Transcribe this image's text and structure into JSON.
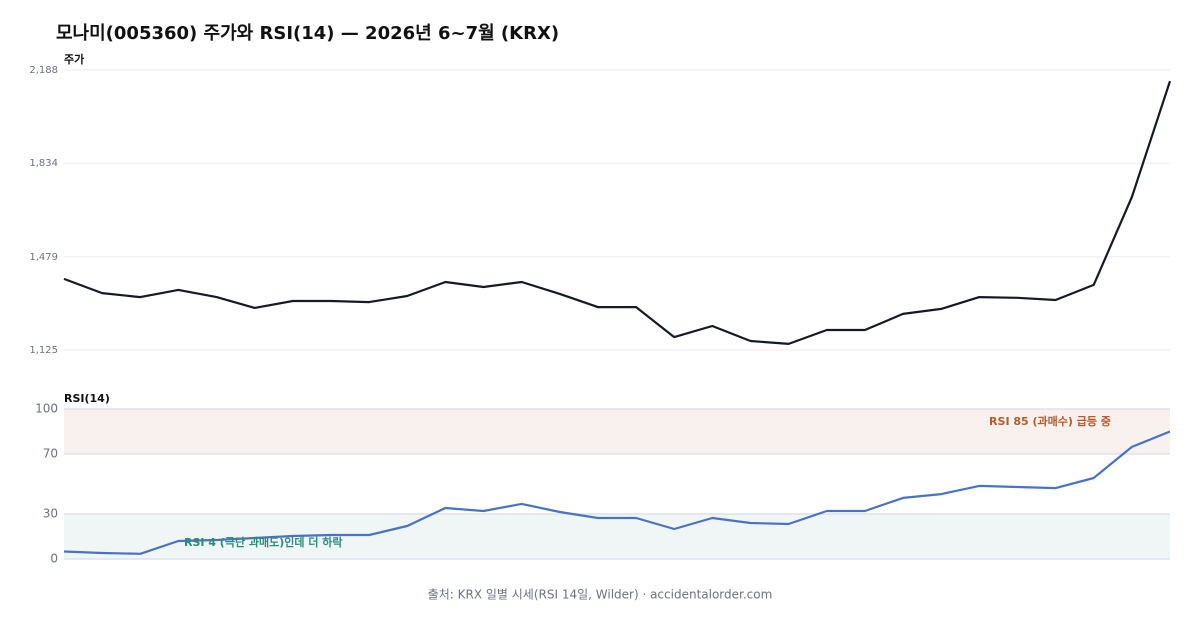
{
  "title": "모나미(005360) 주가와 RSI(14) — 2026년 6~7월 (KRX)",
  "source": "출처: KRX 일별 시세(RSI 14일, Wilder) · accidentalorder.com",
  "chart_data": [
    {
      "type": "line",
      "ylabel": "주가",
      "color": "#161a24",
      "values": [
        1395,
        1341,
        1326,
        1353,
        1326,
        1285,
        1311,
        1311,
        1307,
        1330,
        1383,
        1364,
        1383,
        1338,
        1288,
        1288,
        1174,
        1216,
        1159,
        1148,
        1201,
        1201,
        1262,
        1281,
        1326,
        1323,
        1315,
        1372,
        1706,
        2146
      ],
      "ylim": [
        1125,
        2188
      ],
      "yticks": [
        {
          "value": 1125,
          "label": "1,125"
        },
        {
          "value": 1479,
          "label": "1,479"
        },
        {
          "value": 1834,
          "label": "1,834"
        },
        {
          "value": 2188,
          "label": "2,188"
        }
      ],
      "grid": true
    },
    {
      "type": "line",
      "ylabel": "RSI(14)",
      "color": "#4a72c4",
      "values": [
        5,
        4,
        3.5,
        12,
        12.7,
        14,
        15.3,
        16,
        16,
        22,
        34,
        32,
        36.7,
        31.3,
        27.3,
        27.3,
        20,
        27.3,
        24,
        23.3,
        32,
        32,
        40.7,
        43.3,
        48.7,
        48,
        47.3,
        54,
        74.7,
        85
      ],
      "ylim": [
        0,
        100
      ],
      "yticks": [
        0,
        30,
        70,
        100
      ],
      "grid": true,
      "bands": [
        {
          "from": 70,
          "to": 100,
          "color": "#f8f1ee"
        },
        {
          "from": 0,
          "to": 30,
          "color": "#f0f6f6"
        }
      ],
      "annotations": [
        {
          "text": "RSI 85 (과매수) 급등 중",
          "color": "#b85a2e"
        },
        {
          "text": "RSI 4 (극단 과매도)인데 더 하락",
          "color": "#2e8b7c"
        }
      ]
    }
  ]
}
